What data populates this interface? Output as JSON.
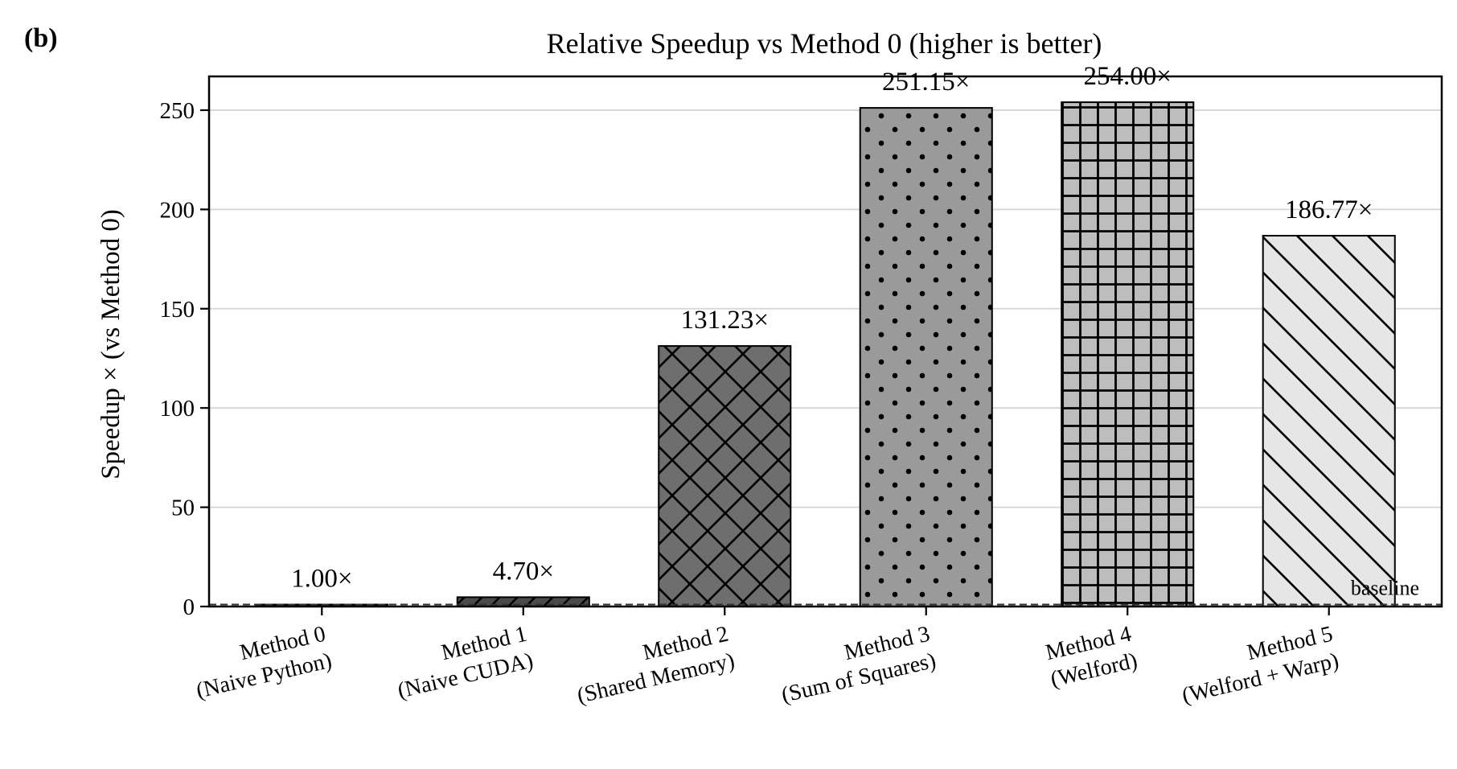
{
  "panel_label": "(b)",
  "chart_data": {
    "type": "bar",
    "title": "Relative Speedup vs Method 0 (higher is better)",
    "xlabel": "",
    "ylabel": "Speedup × (vs Method 0)",
    "ylim": [
      0,
      267
    ],
    "yticks": [
      0,
      50,
      100,
      150,
      200,
      250
    ],
    "grid": "horizontal",
    "categories": [
      [
        "Method 0",
        "(Naive Python)"
      ],
      [
        "Method 1",
        "(Naive CUDA)"
      ],
      [
        "Method 2",
        "(Shared Memory)"
      ],
      [
        "Method 3",
        "(Sum of Squares)"
      ],
      [
        "Method 4",
        "(Welford)"
      ],
      [
        "Method 5",
        "(Welford + Warp)"
      ]
    ],
    "values": [
      1.0,
      4.7,
      131.23,
      251.15,
      254.0,
      186.77
    ],
    "value_labels": [
      "1.00×",
      "4.70×",
      "131.23×",
      "251.15×",
      "254.00×",
      "186.77×"
    ],
    "bar_colors": [
      "#2f2f2f",
      "#4a4a4a",
      "#6e6e6e",
      "#9a9a9a",
      "#bdbdbd",
      "#e6e6e6"
    ],
    "hatches": [
      "none",
      "diagonal",
      "crosshatch",
      "dots",
      "grid",
      "backslash"
    ],
    "reference_line": {
      "value": 1,
      "label": "baseline",
      "style": "dashed"
    }
  }
}
